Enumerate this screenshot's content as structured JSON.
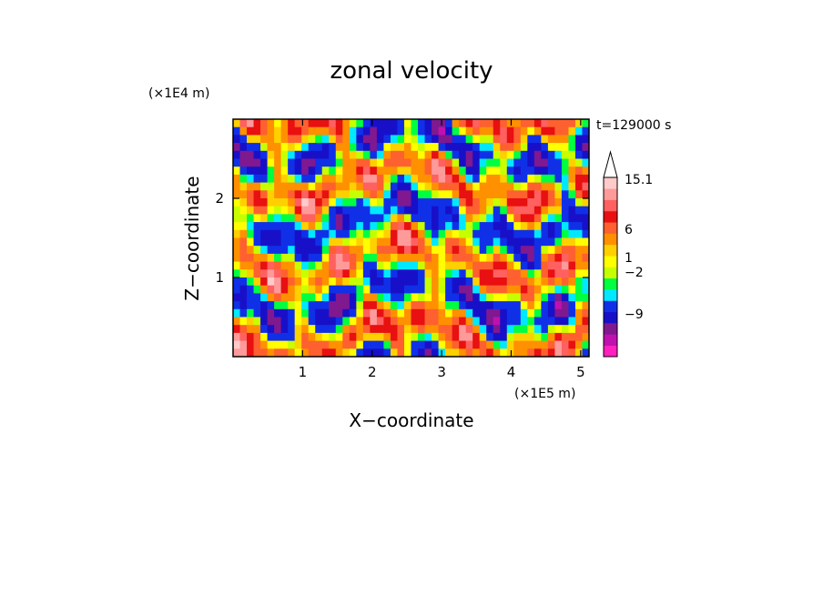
{
  "chart_data": {
    "type": "heatmap",
    "title": "zonal velocity",
    "xlabel": "X−coordinate",
    "ylabel": "Z−coordinate",
    "x_unit": "(×1E5 m)",
    "y_unit": "(×1E4 m)",
    "time_label": "t=129000 s",
    "xlim": [
      0,
      5.12
    ],
    "ylim": [
      0,
      3.0
    ],
    "x_ticks": [
      1,
      2,
      3,
      4,
      5
    ],
    "x_tick_labels": [
      "1",
      "2",
      "3",
      "4",
      "5"
    ],
    "y_ticks": [
      1,
      2
    ],
    "y_tick_labels": [
      "1",
      "2"
    ],
    "colorbar": {
      "labels": [
        {
          "value": 15.1,
          "text": "15.1"
        },
        {
          "value": 6,
          "text": "6"
        },
        {
          "value": 1,
          "text": "1"
        },
        {
          "value": -2,
          "text": "−2"
        },
        {
          "value": -9,
          "text": "−9"
        }
      ],
      "colors": [
        "#ff20c0",
        "#c010b0",
        "#801890",
        "#1810c8",
        "#1030e8",
        "#00e8ff",
        "#00ff40",
        "#c8ff00",
        "#ffff00",
        "#ffd000",
        "#ff9000",
        "#ff6030",
        "#e81010",
        "#ff6060",
        "#ff9a9a",
        "#ffcaca"
      ],
      "overflow_arrow": "max"
    },
    "description_grid_rows": 30,
    "description_grid_cols": 52
  }
}
